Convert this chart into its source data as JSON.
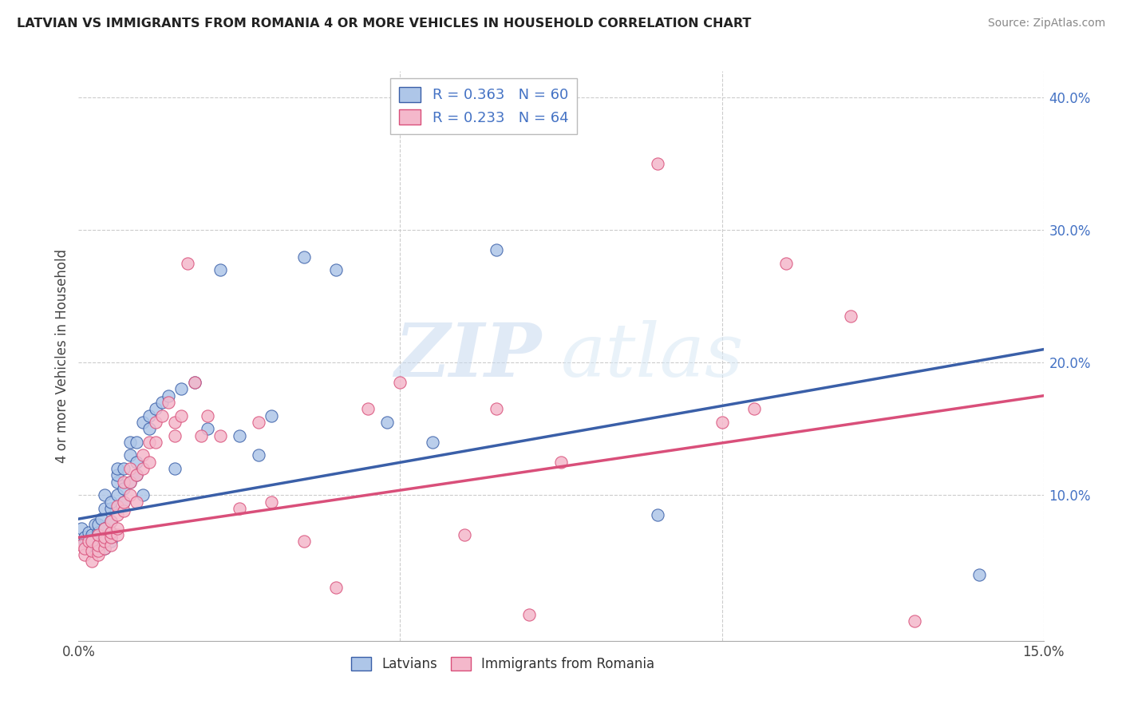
{
  "title": "LATVIAN VS IMMIGRANTS FROM ROMANIA 4 OR MORE VEHICLES IN HOUSEHOLD CORRELATION CHART",
  "source": "Source: ZipAtlas.com",
  "ylabel": "4 or more Vehicles in Household",
  "xmin": 0.0,
  "xmax": 0.15,
  "ymin": -0.01,
  "ymax": 0.42,
  "latvian_color": "#aec6e8",
  "romania_color": "#f4b8cb",
  "trend_latvian_color": "#3a5fa8",
  "trend_romania_color": "#d94f7a",
  "legend_latvian": "R = 0.363   N = 60",
  "legend_romania": "R = 0.233   N = 64",
  "legend_label1": "Latvians",
  "legend_label2": "Immigrants from Romania",
  "watermark_zip": "ZIP",
  "watermark_atlas": "atlas",
  "trend_lat_x0": 0.0,
  "trend_lat_y0": 0.082,
  "trend_lat_x1": 0.15,
  "trend_lat_y1": 0.21,
  "trend_rom_x0": 0.0,
  "trend_rom_y0": 0.068,
  "trend_rom_x1": 0.15,
  "trend_rom_y1": 0.175,
  "latvian_x": [
    0.0005,
    0.001,
    0.001,
    0.0015,
    0.002,
    0.002,
    0.002,
    0.0025,
    0.003,
    0.003,
    0.003,
    0.003,
    0.003,
    0.0035,
    0.004,
    0.004,
    0.004,
    0.004,
    0.004,
    0.005,
    0.005,
    0.005,
    0.005,
    0.005,
    0.005,
    0.006,
    0.006,
    0.006,
    0.006,
    0.007,
    0.007,
    0.007,
    0.008,
    0.008,
    0.008,
    0.009,
    0.009,
    0.009,
    0.01,
    0.01,
    0.011,
    0.011,
    0.012,
    0.013,
    0.014,
    0.015,
    0.016,
    0.018,
    0.02,
    0.022,
    0.025,
    0.028,
    0.03,
    0.035,
    0.04,
    0.048,
    0.055,
    0.065,
    0.09,
    0.14
  ],
  "latvian_y": [
    0.075,
    0.065,
    0.068,
    0.072,
    0.062,
    0.068,
    0.07,
    0.078,
    0.06,
    0.065,
    0.07,
    0.072,
    0.078,
    0.082,
    0.06,
    0.068,
    0.075,
    0.09,
    0.1,
    0.065,
    0.068,
    0.072,
    0.08,
    0.09,
    0.095,
    0.1,
    0.11,
    0.115,
    0.12,
    0.095,
    0.105,
    0.12,
    0.11,
    0.13,
    0.14,
    0.115,
    0.125,
    0.14,
    0.1,
    0.155,
    0.15,
    0.16,
    0.165,
    0.17,
    0.175,
    0.12,
    0.18,
    0.185,
    0.15,
    0.27,
    0.145,
    0.13,
    0.16,
    0.28,
    0.27,
    0.155,
    0.14,
    0.285,
    0.085,
    0.04
  ],
  "romania_x": [
    0.0005,
    0.001,
    0.001,
    0.0015,
    0.002,
    0.002,
    0.002,
    0.003,
    0.003,
    0.003,
    0.003,
    0.004,
    0.004,
    0.004,
    0.004,
    0.005,
    0.005,
    0.005,
    0.005,
    0.006,
    0.006,
    0.006,
    0.006,
    0.007,
    0.007,
    0.007,
    0.008,
    0.008,
    0.008,
    0.009,
    0.009,
    0.01,
    0.01,
    0.011,
    0.011,
    0.012,
    0.012,
    0.013,
    0.014,
    0.015,
    0.015,
    0.016,
    0.017,
    0.018,
    0.019,
    0.02,
    0.022,
    0.025,
    0.028,
    0.03,
    0.035,
    0.04,
    0.045,
    0.05,
    0.06,
    0.065,
    0.07,
    0.075,
    0.09,
    0.1,
    0.105,
    0.11,
    0.12,
    0.13
  ],
  "romania_y": [
    0.062,
    0.055,
    0.06,
    0.065,
    0.05,
    0.058,
    0.065,
    0.055,
    0.058,
    0.062,
    0.07,
    0.06,
    0.065,
    0.068,
    0.075,
    0.062,
    0.068,
    0.072,
    0.08,
    0.07,
    0.075,
    0.085,
    0.092,
    0.088,
    0.095,
    0.11,
    0.1,
    0.11,
    0.12,
    0.095,
    0.115,
    0.12,
    0.13,
    0.125,
    0.14,
    0.14,
    0.155,
    0.16,
    0.17,
    0.145,
    0.155,
    0.16,
    0.275,
    0.185,
    0.145,
    0.16,
    0.145,
    0.09,
    0.155,
    0.095,
    0.065,
    0.03,
    0.165,
    0.185,
    0.07,
    0.165,
    0.01,
    0.125,
    0.35,
    0.155,
    0.165,
    0.275,
    0.235,
    0.005
  ]
}
